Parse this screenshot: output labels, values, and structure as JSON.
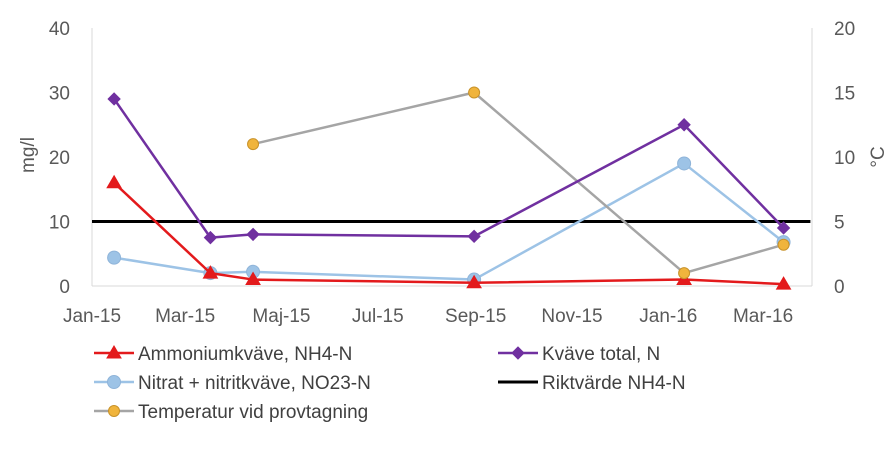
{
  "chart_data": {
    "type": "line",
    "x_ticks": [
      "Jan-15",
      "Mar-15",
      "Maj-15",
      "Jul-15",
      "Sep-15",
      "Nov-15",
      "Jan-16",
      "Mar-16"
    ],
    "y_left": {
      "label": "mg/l",
      "min": 0,
      "max": 40,
      "ticks": [
        "0",
        "10",
        "20",
        "30",
        "40"
      ]
    },
    "y_right": {
      "label": "°C",
      "min": 0,
      "max": 20,
      "ticks": [
        "0",
        "5",
        "10",
        "15",
        "20"
      ]
    },
    "series": [
      {
        "name": "Ammoniumkväve, NH4-N",
        "axis": "left",
        "color": "#e31a1c",
        "marker": "triangle",
        "x": [
          "2015-01-15",
          "2015-03-17",
          "2015-04-13",
          "2015-08-31",
          "2016-01-11",
          "2016-03-14"
        ],
        "y": [
          16,
          2,
          1,
          0.5,
          1,
          0.3
        ]
      },
      {
        "name": "Kväve total, N",
        "axis": "left",
        "color": "#7030a0",
        "marker": "diamond",
        "x": [
          "2015-01-15",
          "2015-03-17",
          "2015-04-13",
          "2015-08-31",
          "2016-01-11",
          "2016-03-14"
        ],
        "y": [
          29,
          7.5,
          8,
          7.7,
          25,
          9
        ]
      },
      {
        "name": "Nitrat + nitritkväve, NO23-N",
        "axis": "left",
        "color": "#9dc3e6",
        "marker": "circle",
        "x": [
          "2015-01-15",
          "2015-03-17",
          "2015-04-13",
          "2015-08-31",
          "2016-01-11",
          "2016-03-14"
        ],
        "y": [
          4.4,
          2,
          2.2,
          1,
          19,
          6.8
        ]
      },
      {
        "name": "Riktvärde NH4-N",
        "axis": "left",
        "color": "#000000",
        "marker": "none",
        "x": [
          "2015-01-01",
          "2016-03-31"
        ],
        "y": [
          10,
          10
        ]
      },
      {
        "name": "Temperatur vid provtagning",
        "axis": "right",
        "color": "#a5a5a5",
        "marker": "circle-orange",
        "marker_color": "#f0b43c",
        "x": [
          "2015-04-13",
          "2015-08-31",
          "2016-01-11",
          "2016-03-14"
        ],
        "y": [
          11,
          15,
          1,
          3.2
        ]
      }
    ],
    "legend_position": "bottom",
    "grid": false
  }
}
